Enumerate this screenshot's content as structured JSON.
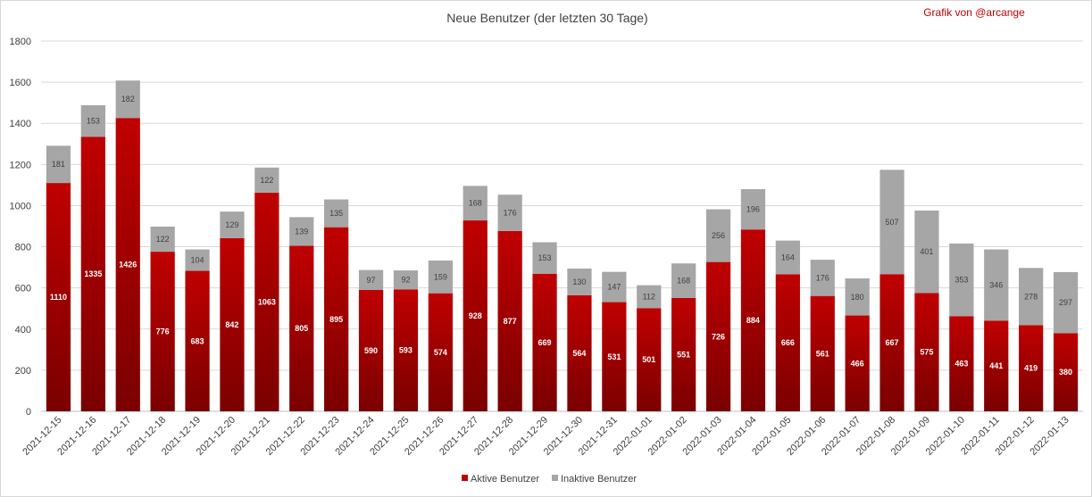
{
  "chart_data": {
    "type": "bar",
    "stacked": true,
    "title": "Neue Benutzer (der letzten 30 Tage)",
    "credit": "Grafik von @arcange",
    "categories": [
      "2021-12-15",
      "2021-12-16",
      "2021-12-17",
      "2021-12-18",
      "2021-12-19",
      "2021-12-20",
      "2021-12-21",
      "2021-12-22",
      "2021-12-23",
      "2021-12-24",
      "2021-12-25",
      "2021-12-26",
      "2021-12-27",
      "2021-12-28",
      "2021-12-29",
      "2021-12-30",
      "2021-12-31",
      "2022-01-01",
      "2022-01-02",
      "2022-01-03",
      "2022-01-04",
      "2022-01-05",
      "2022-01-06",
      "2022-01-07",
      "2022-01-08",
      "2022-01-09",
      "2022-01-10",
      "2022-01-11",
      "2022-01-12",
      "2022-01-13"
    ],
    "series": [
      {
        "name": "Aktive Benutzer",
        "color": "#c00000",
        "color_dark": "#7a0000",
        "values": [
          1110,
          1335,
          1426,
          776,
          683,
          842,
          1063,
          805,
          895,
          590,
          593,
          574,
          928,
          877,
          669,
          564,
          531,
          501,
          551,
          726,
          884,
          666,
          561,
          466,
          667,
          575,
          463,
          441,
          419,
          380
        ]
      },
      {
        "name": "Inaktive Benutzer",
        "color": "#a6a6a6",
        "values": [
          181,
          153,
          182,
          122,
          104,
          129,
          122,
          139,
          135,
          97,
          92,
          159,
          168,
          176,
          153,
          130,
          147,
          112,
          168,
          256,
          196,
          164,
          176,
          180,
          507,
          401,
          353,
          346,
          278,
          297
        ]
      }
    ],
    "y_ticks": [
      0,
      200,
      400,
      600,
      800,
      1000,
      1200,
      1400,
      1600,
      1800
    ],
    "ylim": [
      0,
      1800
    ],
    "grid": true,
    "legend_position": "bottom",
    "xlabel": "",
    "ylabel": ""
  }
}
